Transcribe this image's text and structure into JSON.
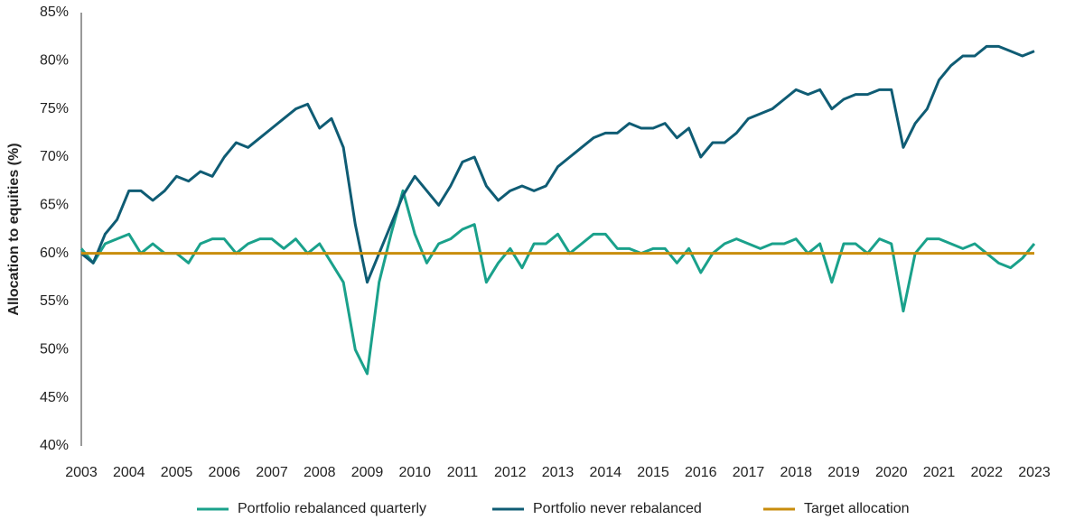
{
  "chart_data": {
    "type": "line",
    "y_label": "Allocation to equities (%)",
    "x": [
      2003,
      2003.25,
      2003.5,
      2003.75,
      2004,
      2004.25,
      2004.5,
      2004.75,
      2005,
      2005.25,
      2005.5,
      2005.75,
      2006,
      2006.25,
      2006.5,
      2006.75,
      2007,
      2007.25,
      2007.5,
      2007.75,
      2008,
      2008.25,
      2008.5,
      2008.75,
      2009,
      2009.25,
      2009.5,
      2009.75,
      2010,
      2010.25,
      2010.5,
      2010.75,
      2011,
      2011.25,
      2011.5,
      2011.75,
      2012,
      2012.25,
      2012.5,
      2012.75,
      2013,
      2013.25,
      2013.5,
      2013.75,
      2014,
      2014.25,
      2014.5,
      2014.75,
      2015,
      2015.25,
      2015.5,
      2015.75,
      2016,
      2016.25,
      2016.5,
      2016.75,
      2017,
      2017.25,
      2017.5,
      2017.75,
      2018,
      2018.25,
      2018.5,
      2018.75,
      2019,
      2019.25,
      2019.5,
      2019.75,
      2020,
      2020.25,
      2020.5,
      2020.75,
      2021,
      2021.25,
      2021.5,
      2021.75,
      2022,
      2022.25,
      2022.5,
      2022.75,
      2023
    ],
    "series": [
      {
        "name": "Portfolio rebalanced quarterly",
        "color": "#1aa18b",
        "values": [
          60.5,
          59,
          61,
          61.5,
          62,
          60,
          61,
          60,
          60,
          59,
          61,
          61.5,
          61.5,
          60,
          61,
          61.5,
          61.5,
          60.5,
          61.5,
          60,
          61,
          59,
          57,
          50,
          47.5,
          57,
          62,
          66.5,
          62,
          59,
          61,
          61.5,
          62.5,
          63,
          57,
          59,
          60.5,
          58.5,
          61,
          61,
          62,
          60,
          61,
          62,
          62,
          60.5,
          60.5,
          60,
          60.5,
          60.5,
          59,
          60.5,
          58,
          60,
          61,
          61.5,
          61,
          60.5,
          61,
          61,
          61.5,
          60,
          61,
          57,
          61,
          61,
          60,
          61.5,
          61,
          54,
          60,
          61.5,
          61.5,
          61,
          60.5,
          61,
          60,
          59,
          58.5,
          59.5,
          61
        ]
      },
      {
        "name": "Portfolio never rebalanced",
        "color": "#0f5c74",
        "values": [
          60,
          59,
          62,
          63.5,
          66.5,
          66.5,
          65.5,
          66.5,
          68,
          67.5,
          68.5,
          68,
          70,
          71.5,
          71,
          72,
          73,
          74,
          75,
          75.5,
          73,
          74,
          71,
          63,
          57,
          60,
          63,
          66,
          68,
          66.5,
          65,
          67,
          69.5,
          70,
          67,
          65.5,
          66.5,
          67,
          66.5,
          67,
          69,
          70,
          71,
          72,
          72.5,
          72.5,
          73.5,
          73,
          73,
          73.5,
          72,
          73,
          70,
          71.5,
          71.5,
          72.5,
          74,
          74.5,
          75,
          76,
          77,
          76.5,
          77,
          75,
          76,
          76.5,
          76.5,
          77,
          77,
          71,
          73.5,
          75,
          78,
          79.5,
          80.5,
          80.5,
          81.5,
          81.5,
          81,
          80.5,
          81
        ]
      },
      {
        "name": "Target allocation",
        "color": "#c88d0c",
        "values": [
          60,
          60,
          60,
          60,
          60,
          60,
          60,
          60,
          60,
          60,
          60,
          60,
          60,
          60,
          60,
          60,
          60,
          60,
          60,
          60,
          60,
          60,
          60,
          60,
          60,
          60,
          60,
          60,
          60,
          60,
          60,
          60,
          60,
          60,
          60,
          60,
          60,
          60,
          60,
          60,
          60,
          60,
          60,
          60,
          60,
          60,
          60,
          60,
          60,
          60,
          60,
          60,
          60,
          60,
          60,
          60,
          60,
          60,
          60,
          60,
          60,
          60,
          60,
          60,
          60,
          60,
          60,
          60,
          60,
          60,
          60,
          60,
          60,
          60,
          60,
          60,
          60,
          60,
          60,
          60,
          60
        ]
      }
    ],
    "xlim": [
      2003,
      2023
    ],
    "xticks": [
      2003,
      2004,
      2005,
      2006,
      2007,
      2008,
      2009,
      2010,
      2011,
      2012,
      2013,
      2014,
      2015,
      2016,
      2017,
      2018,
      2019,
      2020,
      2021,
      2022,
      2023
    ],
    "ylim": [
      40,
      85
    ],
    "yticks": [
      {
        "value": 40,
        "label": "40%"
      },
      {
        "value": 45,
        "label": "45%"
      },
      {
        "value": 50,
        "label": "50%"
      },
      {
        "value": 55,
        "label": "55%"
      },
      {
        "value": 60,
        "label": "60%"
      },
      {
        "value": 65,
        "label": "65%"
      },
      {
        "value": 70,
        "label": "70%"
      },
      {
        "value": 75,
        "label": "75%"
      },
      {
        "value": 80,
        "label": "80%"
      },
      {
        "value": 85,
        "label": "85%"
      }
    ],
    "grid": false
  }
}
